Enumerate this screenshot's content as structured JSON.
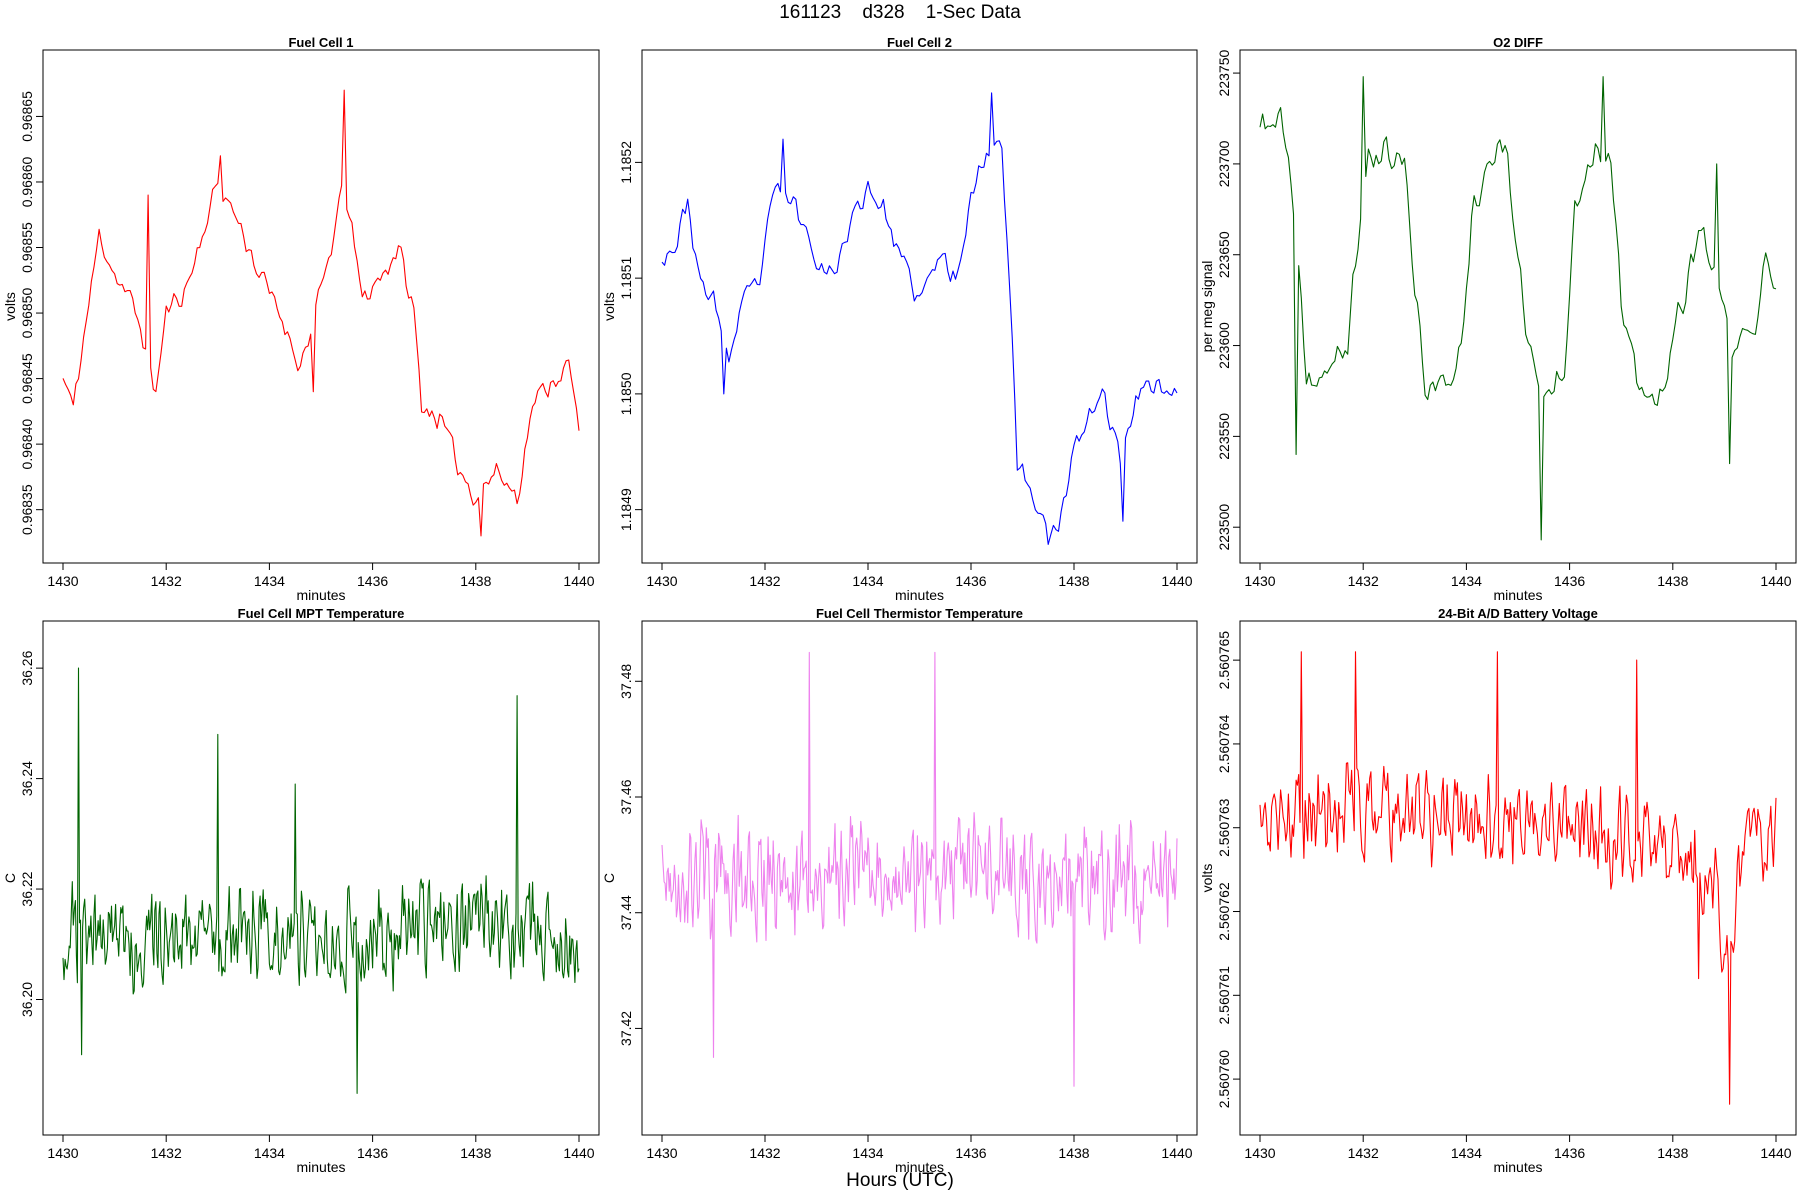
{
  "page": {
    "title": "161123    d328    1-Sec Data",
    "bottom_label": "Hours (UTC)"
  },
  "chart_data": [
    {
      "type": "line",
      "title": "Fuel Cell 1",
      "xlabel": "minutes",
      "ylabel": "volts",
      "color": "#ff0000",
      "xlim": [
        1430,
        1440
      ],
      "ylim": [
        0.96832,
        0.96869
      ],
      "xticks": [
        1430,
        1432,
        1434,
        1436,
        1438,
        1440
      ],
      "yticks": [
        0.96835,
        0.9684,
        0.96845,
        0.9685,
        0.96855,
        0.9686,
        0.96865
      ],
      "ytick_labels": [
        "0.96835",
        "0.96840",
        "0.96845",
        "0.96850",
        "0.96855",
        "0.96860",
        "0.96865"
      ],
      "seed": 11,
      "noise": 0.25,
      "step": 0.05,
      "keypoints": [
        [
          1430,
          0.96845
        ],
        [
          1430.2,
          0.96843
        ],
        [
          1430.4,
          0.96848
        ],
        [
          1430.7,
          0.96856
        ],
        [
          1431.0,
          0.96853
        ],
        [
          1431.3,
          0.96851
        ],
        [
          1431.5,
          0.96849
        ],
        [
          1431.8,
          0.96844
        ],
        [
          1432.0,
          0.9685
        ],
        [
          1432.4,
          0.96852
        ],
        [
          1432.7,
          0.96856
        ],
        [
          1433.0,
          0.9686
        ],
        [
          1433.4,
          0.96857
        ],
        [
          1433.8,
          0.96853
        ],
        [
          1434.2,
          0.9685
        ],
        [
          1434.6,
          0.96846
        ],
        [
          1434.9,
          0.9685
        ],
        [
          1435.2,
          0.96855
        ],
        [
          1435.45,
          0.9686
        ],
        [
          1435.8,
          0.96851
        ],
        [
          1436.2,
          0.96853
        ],
        [
          1436.5,
          0.96855
        ],
        [
          1436.8,
          0.9685
        ],
        [
          1436.95,
          0.96843
        ],
        [
          1437.3,
          0.96842
        ],
        [
          1437.7,
          0.96838
        ],
        [
          1438.0,
          0.96836
        ],
        [
          1438.4,
          0.96838
        ],
        [
          1438.8,
          0.96836
        ],
        [
          1439.1,
          0.96843
        ],
        [
          1439.5,
          0.96845
        ],
        [
          1439.8,
          0.96846
        ],
        [
          1440,
          0.96841
        ]
      ],
      "spikes": [
        [
          1435.45,
          0.96867
        ],
        [
          1431.65,
          0.96859
        ],
        [
          1433.05,
          0.96862
        ],
        [
          1434.85,
          0.96844
        ],
        [
          1438.1,
          0.96833
        ],
        [
          1430.2,
          0.96843
        ]
      ]
    },
    {
      "type": "line",
      "title": "Fuel Cell 2",
      "xlabel": "minutes",
      "ylabel": "volts",
      "color": "#0000ff",
      "xlim": [
        1430,
        1440
      ],
      "ylim": [
        1.184866,
        1.185285
      ],
      "xticks": [
        1430,
        1432,
        1434,
        1436,
        1438,
        1440
      ],
      "yticks": [
        1.1849,
        1.185,
        1.1851,
        1.1852
      ],
      "ytick_labels": [
        "1.1849",
        "1.1850",
        "1.1851",
        "1.1852"
      ],
      "seed": 23,
      "noise": 0.25,
      "step": 0.05,
      "keypoints": [
        [
          1430,
          1.18512
        ],
        [
          1430.3,
          1.18513
        ],
        [
          1430.5,
          1.18517
        ],
        [
          1430.7,
          1.1851
        ],
        [
          1431.0,
          1.18508
        ],
        [
          1431.3,
          1.18503
        ],
        [
          1431.6,
          1.18508
        ],
        [
          1431.9,
          1.1851
        ],
        [
          1432.2,
          1.18518
        ],
        [
          1432.6,
          1.18516
        ],
        [
          1433.0,
          1.18512
        ],
        [
          1433.3,
          1.1851
        ],
        [
          1433.6,
          1.18514
        ],
        [
          1434.0,
          1.18518
        ],
        [
          1434.3,
          1.18516
        ],
        [
          1434.6,
          1.18512
        ],
        [
          1435.0,
          1.18508
        ],
        [
          1435.4,
          1.18512
        ],
        [
          1435.7,
          1.1851
        ],
        [
          1436.0,
          1.18517
        ],
        [
          1436.3,
          1.18521
        ],
        [
          1436.6,
          1.18522
        ],
        [
          1436.8,
          1.18505
        ],
        [
          1436.9,
          1.18494
        ],
        [
          1437.3,
          1.1849
        ],
        [
          1437.7,
          1.18488
        ],
        [
          1438.0,
          1.18495
        ],
        [
          1438.3,
          1.18498
        ],
        [
          1438.6,
          1.185
        ],
        [
          1438.9,
          1.18494
        ],
        [
          1439.2,
          1.185
        ],
        [
          1439.5,
          1.18501
        ],
        [
          1440,
          1.185
        ]
      ],
      "spikes": [
        [
          1436.4,
          1.18526
        ],
        [
          1437.5,
          1.18487
        ],
        [
          1438.95,
          1.18489
        ],
        [
          1431.2,
          1.185
        ],
        [
          1432.35,
          1.18522
        ]
      ]
    },
    {
      "type": "line",
      "title": "O2 DIFF",
      "xlabel": "minutes",
      "ylabel": "per meg signal",
      "color": "#006400",
      "xlim": [
        1430,
        1440
      ],
      "ylim": [
        223488,
        223755
      ],
      "xticks": [
        1430,
        1432,
        1434,
        1436,
        1438,
        1440
      ],
      "yticks": [
        223500,
        223550,
        223600,
        223650,
        223700,
        223750
      ],
      "ytick_labels": [
        "223500",
        "223550",
        "223600",
        "223650",
        "223700",
        "223750"
      ],
      "seed": 37,
      "noise": 0.35,
      "step": 0.05,
      "keypoints": [
        [
          1430,
          223720
        ],
        [
          1430.4,
          223725
        ],
        [
          1430.6,
          223690
        ],
        [
          1430.9,
          223580
        ],
        [
          1431.3,
          223585
        ],
        [
          1431.7,
          223600
        ],
        [
          1431.9,
          223660
        ],
        [
          1432.1,
          223705
        ],
        [
          1432.5,
          223705
        ],
        [
          1432.8,
          223700
        ],
        [
          1433.0,
          223630
        ],
        [
          1433.2,
          223580
        ],
        [
          1433.6,
          223575
        ],
        [
          1433.9,
          223600
        ],
        [
          1434.1,
          223670
        ],
        [
          1434.4,
          223705
        ],
        [
          1434.8,
          223705
        ],
        [
          1435.0,
          223650
        ],
        [
          1435.2,
          223600
        ],
        [
          1435.5,
          223570
        ],
        [
          1435.9,
          223590
        ],
        [
          1436.1,
          223680
        ],
        [
          1436.5,
          223710
        ],
        [
          1436.8,
          223705
        ],
        [
          1437.0,
          223620
        ],
        [
          1437.3,
          223580
        ],
        [
          1437.7,
          223565
        ],
        [
          1438.0,
          223600
        ],
        [
          1438.3,
          223640
        ],
        [
          1438.6,
          223660
        ],
        [
          1438.9,
          223630
        ],
        [
          1439.1,
          223600
        ],
        [
          1439.6,
          223605
        ],
        [
          1439.8,
          223650
        ],
        [
          1440,
          223640
        ]
      ],
      "spikes": [
        [
          1435.45,
          223493
        ],
        [
          1432.0,
          223748
        ],
        [
          1436.65,
          223748
        ],
        [
          1430.7,
          223540
        ],
        [
          1439.1,
          223535
        ],
        [
          1438.85,
          223700
        ]
      ]
    },
    {
      "type": "line",
      "title": "Fuel Cell MPT Temperature",
      "xlabel": "minutes",
      "ylabel": "C",
      "color": "#006400",
      "xlim": [
        1430,
        1440
      ],
      "ylim": [
        36.178,
        36.266
      ],
      "xticks": [
        1430,
        1432,
        1434,
        1436,
        1438,
        1440
      ],
      "yticks": [
        36.2,
        36.22,
        36.24,
        36.26
      ],
      "ytick_labels": [
        "36.20",
        "36.22",
        "36.24",
        "36.26"
      ],
      "seed": 51,
      "noise": 1.0,
      "step": 0.02,
      "keypoints": [
        [
          1430,
          36.212
        ],
        [
          1432,
          36.211
        ],
        [
          1434,
          36.213
        ],
        [
          1436,
          36.211
        ],
        [
          1438,
          36.214
        ],
        [
          1439,
          36.212
        ],
        [
          1440,
          36.209
        ]
      ],
      "spikes": [
        [
          1430.3,
          36.26
        ],
        [
          1438.8,
          36.255
        ],
        [
          1433.0,
          36.248
        ],
        [
          1434.5,
          36.239
        ],
        [
          1435.7,
          36.183
        ],
        [
          1430.35,
          36.19
        ]
      ]
    },
    {
      "type": "line",
      "title": "Fuel Cell Thermistor Temperature",
      "xlabel": "minutes",
      "ylabel": "C",
      "color": "#ee82ee",
      "xlim": [
        1430,
        1440
      ],
      "ylim": [
        37.404,
        37.488
      ],
      "xticks": [
        1430,
        1432,
        1434,
        1436,
        1438,
        1440
      ],
      "yticks": [
        37.42,
        37.44,
        37.46,
        37.48
      ],
      "ytick_labels": [
        "37.42",
        "37.44",
        "37.46",
        "37.48"
      ],
      "seed": 67,
      "noise": 1.15,
      "step": 0.02,
      "keypoints": [
        [
          1430,
          37.445
        ],
        [
          1432,
          37.446
        ],
        [
          1434,
          37.447
        ],
        [
          1436,
          37.446
        ],
        [
          1438,
          37.445
        ],
        [
          1440,
          37.446
        ]
      ],
      "spikes": [
        [
          1438.0,
          37.41
        ],
        [
          1432.85,
          37.485
        ],
        [
          1435.3,
          37.485
        ],
        [
          1431.0,
          37.415
        ]
      ]
    },
    {
      "type": "line",
      "title": "24-Bit A/D Battery Voltage",
      "xlabel": "minutes",
      "ylabel": "volts",
      "color": "#ff0000",
      "xlim": [
        1430,
        1440
      ],
      "ylim": [
        2.5607595,
        2.5607653
      ],
      "xticks": [
        1430,
        1432,
        1434,
        1436,
        1438,
        1440
      ],
      "yticks": [
        2.56076,
        2.560761,
        2.560762,
        2.560763,
        2.560764,
        2.560765
      ],
      "ytick_labels": [
        "2.560760",
        "2.560761",
        "2.560762",
        "2.560763",
        "2.560764",
        "2.560765"
      ],
      "seed": 83,
      "noise": 1.0,
      "step": 0.025,
      "keypoints": [
        [
          1430,
          2.5607631
        ],
        [
          1432,
          2.5607632
        ],
        [
          1434,
          2.5607631
        ],
        [
          1436,
          2.560763
        ],
        [
          1438,
          2.5607628
        ],
        [
          1438.8,
          2.5607622
        ],
        [
          1439.1,
          2.5607612
        ],
        [
          1439.4,
          2.5607628
        ],
        [
          1440,
          2.560763
        ]
      ],
      "spikes": [
        [
          1439.1,
          2.5607597
        ],
        [
          1430.8,
          2.5607651
        ],
        [
          1431.85,
          2.5607651
        ],
        [
          1434.6,
          2.5607651
        ],
        [
          1437.3,
          2.560765
        ],
        [
          1438.5,
          2.5607612
        ]
      ]
    }
  ]
}
